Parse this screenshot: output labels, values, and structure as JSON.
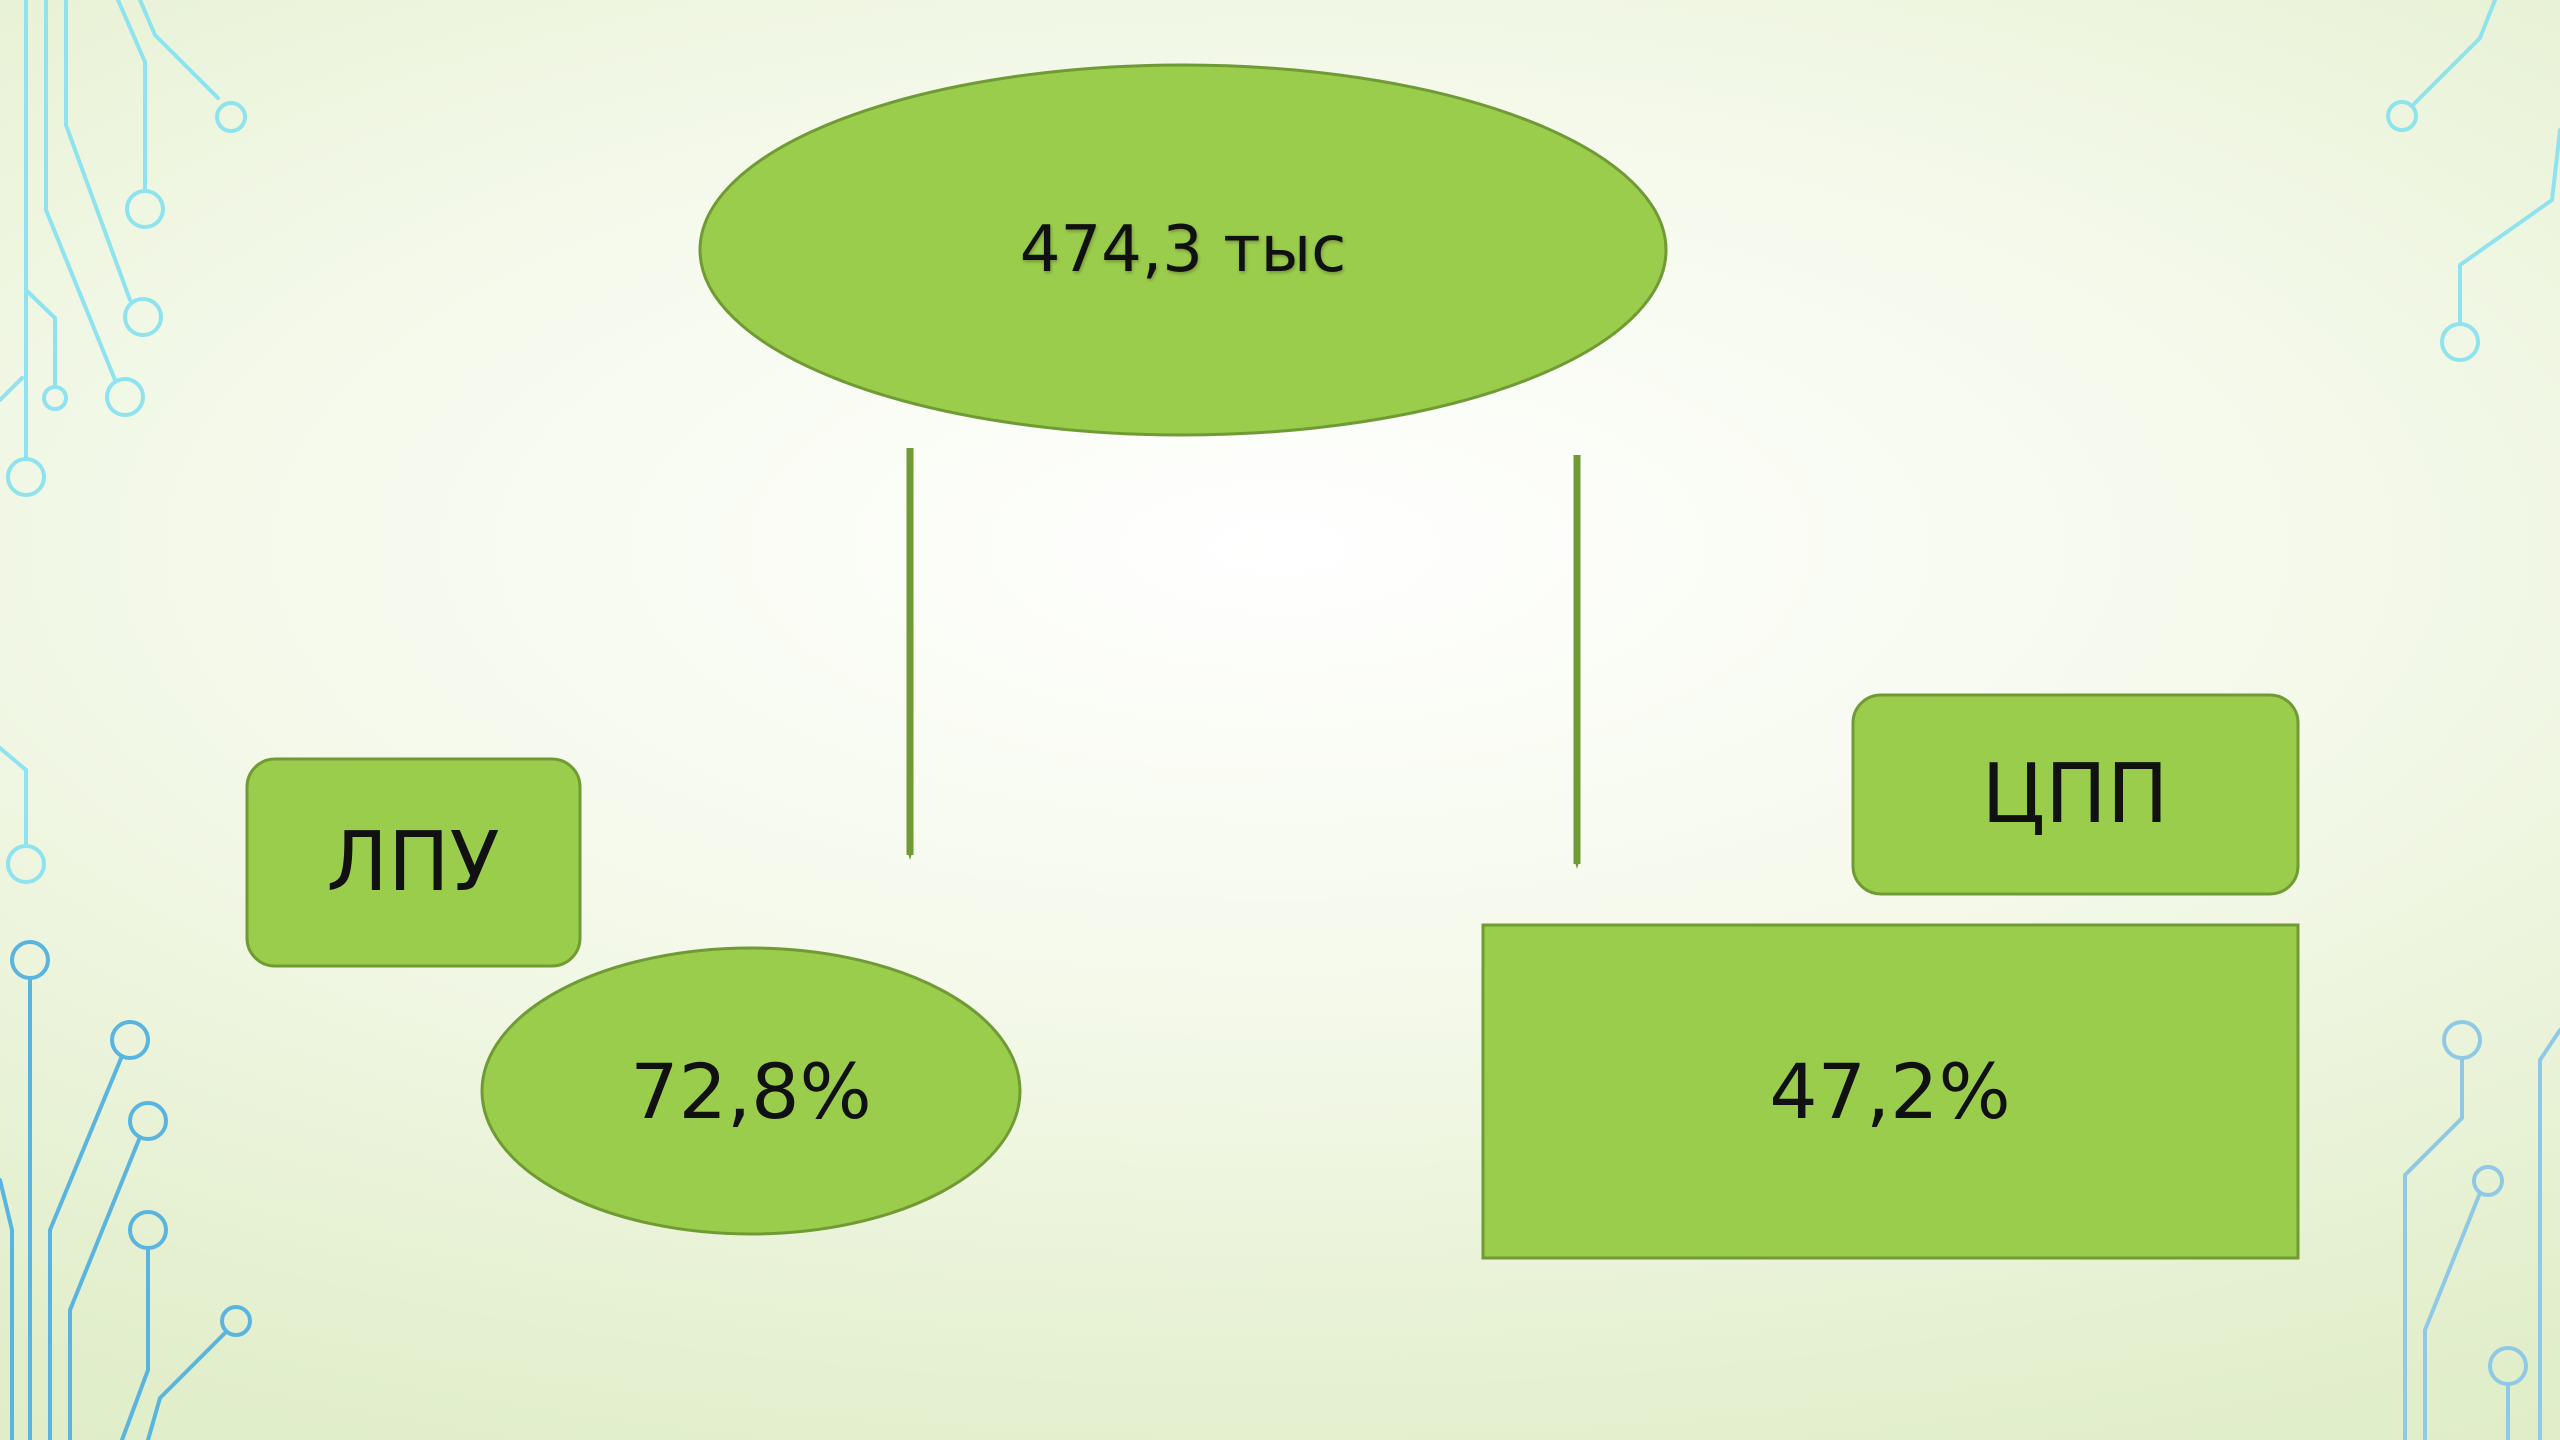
{
  "diagram": {
    "root": {
      "text": "474,3 тыс"
    },
    "branches": [
      {
        "label": "ЛПУ",
        "value": "72,8%"
      },
      {
        "label": "ЦПП",
        "value": "47,2%"
      }
    ]
  },
  "colors": {
    "shape_fill": "#9bcd4c",
    "shape_stroke": "#6f9a34",
    "arrow": "#6f9a34",
    "circuit_left_top": "#8ee3ef",
    "circuit_left_bottom": "#5ab4e0",
    "circuit_right": "#8fc9e6"
  }
}
